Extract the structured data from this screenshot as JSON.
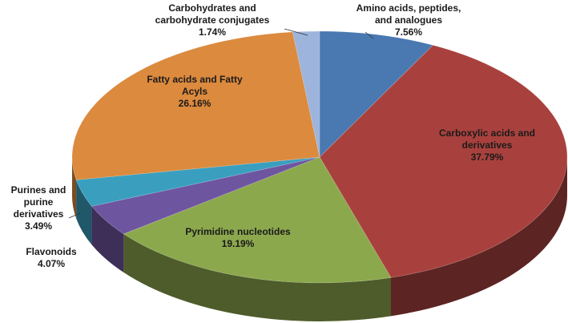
{
  "chart_data": {
    "type": "pie",
    "title": "",
    "style": "3d",
    "slices": [
      {
        "name_lines": [
          "Amino acids, peptides,",
          "and analogues"
        ],
        "value": 7.56,
        "value_label": "7.56%",
        "color": "#4a78b0"
      },
      {
        "name_lines": [
          "Carboxylic acids and",
          "derivatives"
        ],
        "value": 37.79,
        "value_label": "37.79%",
        "color": "#a8413d"
      },
      {
        "name_lines": [
          "Pyrimidine nucleotides"
        ],
        "value": 19.19,
        "value_label": "19.19%",
        "color": "#8ca84d"
      },
      {
        "name_lines": [
          "Flavonoids"
        ],
        "value": 4.07,
        "value_label": "4.07%",
        "color": "#6e55a0"
      },
      {
        "name_lines": [
          "Purines and",
          "purine",
          "derivatives"
        ],
        "value": 3.49,
        "value_label": "3.49%",
        "color": "#3a9fbf"
      },
      {
        "name_lines": [
          "Fatty acids and Fatty",
          "Acyls"
        ],
        "value": 26.16,
        "value_label": "26.16%",
        "color": "#dc8a3e"
      },
      {
        "name_lines": [
          "Carbohydrates and",
          "carbohydrate conjugates"
        ],
        "value": 1.74,
        "value_label": "1.74%",
        "color": "#9db4dc"
      }
    ]
  }
}
